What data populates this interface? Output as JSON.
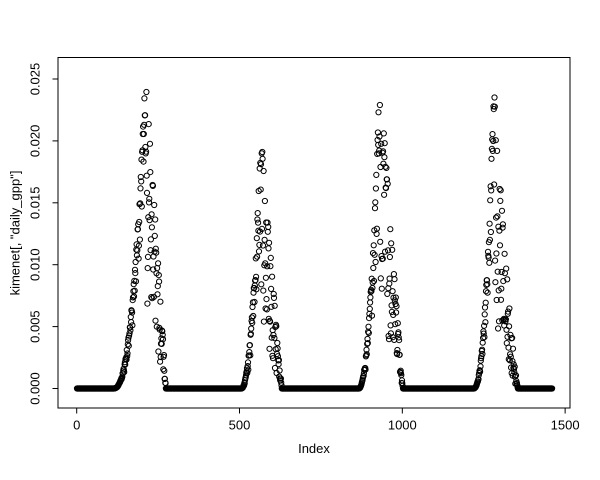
{
  "figure": {
    "background": "#ffffff",
    "axis_color": "#000000",
    "text_color": "#000000"
  },
  "chart_data": {
    "type": "scatter",
    "title": "",
    "xlabel": "Index",
    "ylabel": "kimenet[, \"daily_gpp\"]",
    "x_ticks": {
      "values": [
        0,
        500,
        1000,
        1500
      ],
      "labels": [
        "0",
        "500",
        "1000",
        "1500"
      ]
    },
    "y_ticks": {
      "values": [
        0,
        0.005,
        0.01,
        0.015,
        0.02,
        0.025
      ],
      "labels": [
        "0.000",
        "0.005",
        "0.010",
        "0.015",
        "0.020",
        "0.025"
      ]
    },
    "xlim": [
      -57,
      1518
    ],
    "ylim": [
      -0.001,
      0.0266
    ],
    "grid": false,
    "legend": "none",
    "marker": {
      "shape": "open-circle",
      "radius_px": 2.6,
      "color": "#000000"
    },
    "n_points": 1460,
    "series_name": "daily_gpp",
    "pattern": "Daily GPP time series over four years: value is exactly 0 during dormant seasons (dense horizontal strips at y=0) with four growing-season peaks; rising limbs are tight, falling limbs widely scattered.",
    "seasons": [
      {
        "start": 113,
        "peak": 211,
        "end": 274,
        "max": 0.0253,
        "rise_exp": 2.4,
        "fall_exp": 0.95,
        "rise_scatter": 0.3,
        "fall_scatter": 0.6,
        "dip_prob": 0.15
      },
      {
        "start": 506,
        "peak": 566,
        "end": 630,
        "max": 0.0205,
        "rise_exp": 2.0,
        "fall_exp": 1.05,
        "rise_scatter": 0.4,
        "fall_scatter": 0.62,
        "dip_prob": 0.22
      },
      {
        "start": 866,
        "peak": 931,
        "end": 1002,
        "max": 0.0255,
        "rise_exp": 2.1,
        "fall_exp": 1.05,
        "rise_scatter": 0.42,
        "fall_scatter": 0.6,
        "dip_prob": 0.2
      },
      {
        "start": 1219,
        "peak": 1281,
        "end": 1355,
        "max": 0.0245,
        "rise_exp": 2.3,
        "fall_exp": 1.25,
        "rise_scatter": 0.28,
        "fall_scatter": 0.62,
        "dip_prob": 0.22
      }
    ],
    "zero_segments": [
      [
        1,
        112
      ],
      [
        275,
        505
      ],
      [
        631,
        865
      ],
      [
        1003,
        1218
      ],
      [
        1356,
        1460
      ]
    ],
    "peak_maxima": [
      {
        "x": 211,
        "y": 0.0253
      },
      {
        "x": 566,
        "y": 0.0205
      },
      {
        "x": 931,
        "y": 0.0255
      },
      {
        "x": 1281,
        "y": 0.0245
      }
    ],
    "generator": {
      "seed": 11,
      "prng": "mulberry32"
    }
  }
}
